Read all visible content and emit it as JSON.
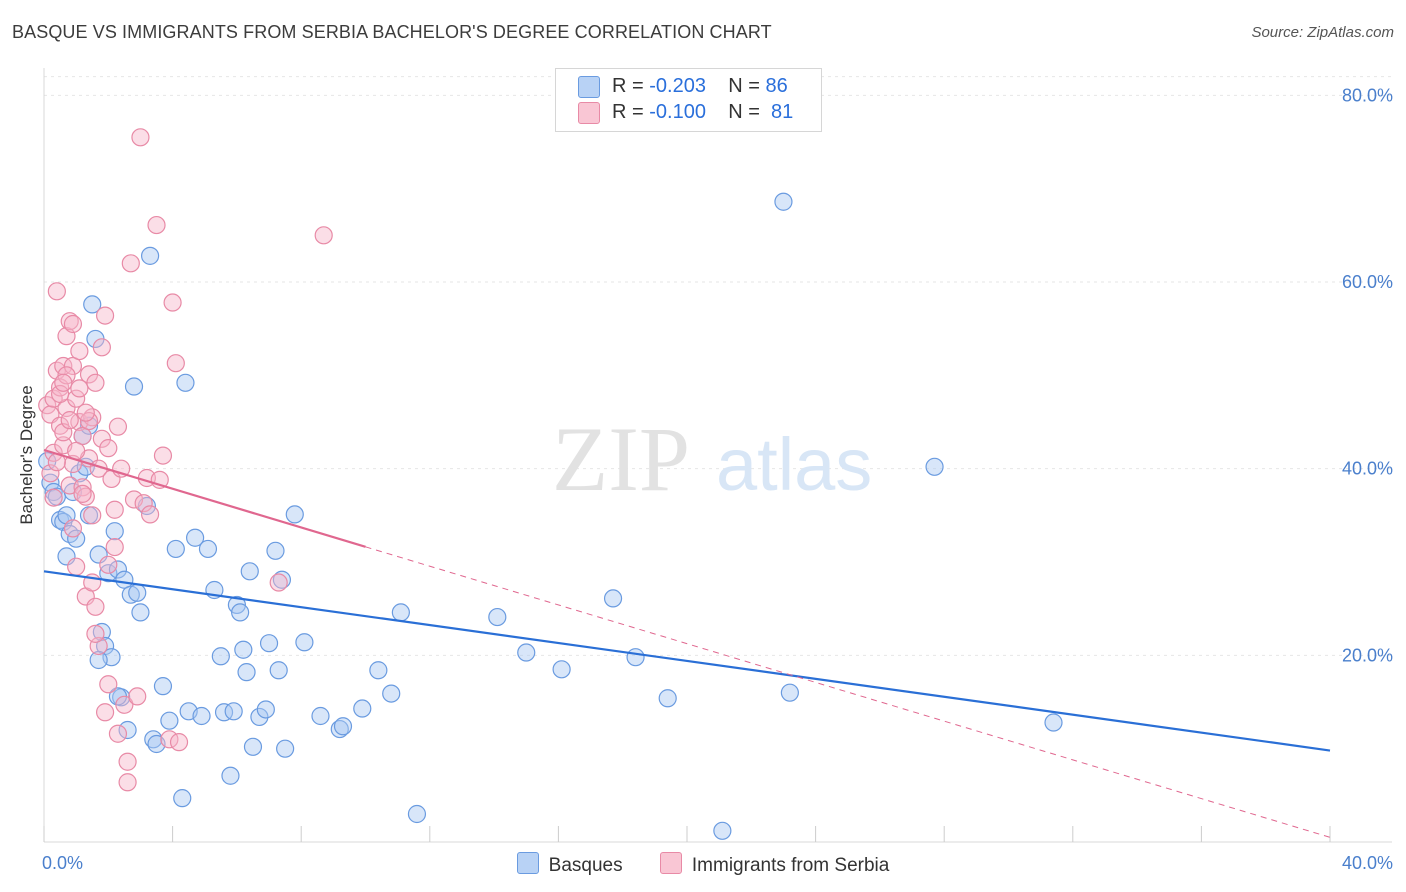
{
  "title": "BASQUE VS IMMIGRANTS FROM SERBIA BACHELOR'S DEGREE CORRELATION CHART",
  "source": "Source: ZipAtlas.com",
  "watermark": {
    "zip": "ZIP",
    "atlas": "atlas"
  },
  "legend": {
    "rows": [
      {
        "r_label": "R =",
        "r_value": "-0.203",
        "n_label": "N =",
        "n_value": "86",
        "color": "#b8d2f5",
        "border": "#6a9be0"
      },
      {
        "r_label": "R =",
        "r_value": "-0.100",
        "n_label": "N =",
        "n_value": "81",
        "color": "#f9c6d4",
        "border": "#e88aa6"
      }
    ]
  },
  "bottom_legend": {
    "basques": "Basques",
    "serbia": "Immigrants from Serbia"
  },
  "chart_data": {
    "type": "scatter",
    "xlabel": "",
    "ylabel": "Bachelor's Degree",
    "xlim": [
      0,
      40
    ],
    "ylim": [
      0,
      84
    ],
    "x_tick_labels": [
      "0.0%",
      "40.0%"
    ],
    "y_ticks": [
      20,
      40,
      60,
      80
    ],
    "y_tick_labels": [
      "20.0%",
      "40.0%",
      "60.0%",
      "80.0%"
    ],
    "series": [
      {
        "name": "Basques",
        "color": "#6a9be0",
        "fill": "rgba(168,200,242,0.45)",
        "trend": {
          "x0": 0,
          "y0": 29.0,
          "x1": 40,
          "y1": 9.8,
          "dashed_from": null,
          "color": "#2a6fd6"
        },
        "points": [
          [
            0.1,
            40.8
          ],
          [
            0.2,
            38.5
          ],
          [
            0.3,
            37.5
          ],
          [
            0.4,
            37.0
          ],
          [
            0.5,
            34.5
          ],
          [
            0.6,
            34.3
          ],
          [
            0.7,
            35.0
          ],
          [
            0.7,
            30.6
          ],
          [
            0.8,
            33.0
          ],
          [
            0.9,
            37.5
          ],
          [
            1.0,
            32.5
          ],
          [
            1.1,
            39.5
          ],
          [
            1.2,
            43.5
          ],
          [
            1.3,
            40.2
          ],
          [
            1.4,
            35.0
          ],
          [
            1.4,
            44.6
          ],
          [
            1.5,
            57.6
          ],
          [
            1.6,
            53.9
          ],
          [
            1.7,
            30.8
          ],
          [
            1.8,
            22.5
          ],
          [
            1.9,
            21.0
          ],
          [
            2.0,
            28.8
          ],
          [
            2.1,
            19.8
          ],
          [
            2.2,
            33.3
          ],
          [
            2.3,
            29.2
          ],
          [
            2.4,
            15.5
          ],
          [
            2.5,
            28.1
          ],
          [
            2.6,
            12.0
          ],
          [
            2.7,
            26.5
          ],
          [
            2.8,
            48.8
          ],
          [
            2.9,
            26.7
          ],
          [
            3.0,
            24.6
          ],
          [
            3.2,
            36.0
          ],
          [
            3.4,
            11.0
          ],
          [
            3.5,
            10.5
          ],
          [
            3.7,
            16.7
          ],
          [
            3.9,
            13.0
          ],
          [
            4.1,
            31.4
          ],
          [
            4.3,
            4.7
          ],
          [
            4.4,
            49.2
          ],
          [
            4.5,
            14.0
          ],
          [
            4.7,
            32.6
          ],
          [
            4.9,
            13.5
          ],
          [
            5.1,
            31.4
          ],
          [
            5.3,
            27.0
          ],
          [
            5.5,
            19.9
          ],
          [
            5.6,
            13.9
          ],
          [
            5.8,
            7.1
          ],
          [
            5.9,
            14.0
          ],
          [
            6.0,
            25.4
          ],
          [
            6.1,
            24.6
          ],
          [
            6.2,
            20.6
          ],
          [
            6.3,
            18.2
          ],
          [
            6.4,
            29.0
          ],
          [
            6.5,
            10.2
          ],
          [
            6.7,
            13.4
          ],
          [
            6.9,
            14.2
          ],
          [
            7.0,
            21.3
          ],
          [
            7.2,
            31.2
          ],
          [
            7.3,
            18.4
          ],
          [
            7.4,
            28.1
          ],
          [
            7.5,
            10.0
          ],
          [
            7.8,
            35.1
          ],
          [
            8.1,
            21.4
          ],
          [
            8.6,
            13.5
          ],
          [
            9.2,
            12.1
          ],
          [
            9.3,
            12.4
          ],
          [
            9.9,
            14.3
          ],
          [
            10.4,
            18.4
          ],
          [
            10.8,
            15.9
          ],
          [
            11.1,
            24.6
          ],
          [
            11.6,
            3.0
          ],
          [
            3.3,
            62.8
          ],
          [
            14.1,
            24.1
          ],
          [
            15.0,
            20.3
          ],
          [
            16.1,
            18.5
          ],
          [
            17.7,
            26.1
          ],
          [
            18.4,
            19.8
          ],
          [
            19.4,
            15.4
          ],
          [
            21.1,
            1.2
          ],
          [
            23.0,
            68.6
          ],
          [
            23.2,
            16.0
          ],
          [
            27.7,
            40.2
          ],
          [
            31.4,
            12.8
          ],
          [
            2.3,
            15.6
          ],
          [
            1.7,
            19.5
          ]
        ]
      },
      {
        "name": "Immigrants from Serbia",
        "color": "#e88aa6",
        "fill": "rgba(246,182,201,0.45)",
        "trend": {
          "x0": 0,
          "y0": 42.0,
          "x1": 40,
          "y1": 0.5,
          "dashed_from": 10.0,
          "color": "#e0678f"
        },
        "points": [
          [
            0.1,
            46.8
          ],
          [
            0.2,
            45.8
          ],
          [
            0.2,
            39.5
          ],
          [
            0.3,
            41.7
          ],
          [
            0.3,
            47.5
          ],
          [
            0.4,
            50.5
          ],
          [
            0.4,
            59.0
          ],
          [
            0.5,
            44.6
          ],
          [
            0.5,
            48.7
          ],
          [
            0.6,
            51.0
          ],
          [
            0.6,
            42.5
          ],
          [
            0.7,
            46.5
          ],
          [
            0.7,
            54.2
          ],
          [
            0.8,
            55.8
          ],
          [
            0.8,
            38.2
          ],
          [
            0.9,
            40.5
          ],
          [
            0.9,
            51.0
          ],
          [
            1.0,
            29.5
          ],
          [
            1.0,
            47.5
          ],
          [
            1.1,
            52.6
          ],
          [
            1.1,
            45.0
          ],
          [
            1.2,
            43.5
          ],
          [
            1.2,
            38.0
          ],
          [
            1.3,
            37.0
          ],
          [
            1.3,
            26.3
          ],
          [
            1.4,
            50.1
          ],
          [
            1.4,
            41.1
          ],
          [
            1.5,
            35.0
          ],
          [
            1.5,
            45.5
          ],
          [
            1.6,
            49.2
          ],
          [
            1.6,
            25.2
          ],
          [
            1.7,
            40.0
          ],
          [
            1.7,
            21.0
          ],
          [
            1.8,
            43.2
          ],
          [
            1.9,
            56.4
          ],
          [
            1.9,
            13.9
          ],
          [
            2.0,
            16.9
          ],
          [
            2.0,
            42.2
          ],
          [
            2.1,
            38.9
          ],
          [
            2.2,
            35.6
          ],
          [
            2.3,
            44.5
          ],
          [
            2.3,
            11.6
          ],
          [
            2.4,
            40.0
          ],
          [
            2.5,
            14.7
          ],
          [
            2.6,
            8.6
          ],
          [
            2.6,
            6.4
          ],
          [
            2.7,
            62.0
          ],
          [
            2.8,
            36.7
          ],
          [
            2.9,
            15.6
          ],
          [
            3.0,
            75.5
          ],
          [
            3.1,
            36.3
          ],
          [
            3.2,
            39.0
          ],
          [
            3.3,
            35.1
          ],
          [
            3.5,
            66.1
          ],
          [
            3.6,
            38.8
          ],
          [
            3.7,
            41.4
          ],
          [
            3.9,
            11.0
          ],
          [
            4.0,
            57.8
          ],
          [
            4.1,
            51.3
          ],
          [
            4.2,
            10.7
          ],
          [
            8.7,
            65.0
          ],
          [
            7.3,
            27.8
          ],
          [
            0.5,
            48.0
          ],
          [
            0.6,
            43.9
          ],
          [
            1.0,
            41.9
          ],
          [
            1.2,
            37.3
          ],
          [
            1.5,
            27.8
          ],
          [
            1.8,
            53.0
          ],
          [
            0.9,
            33.6
          ],
          [
            0.4,
            40.7
          ],
          [
            1.1,
            48.6
          ],
          [
            0.8,
            45.2
          ],
          [
            0.3,
            36.9
          ],
          [
            2.0,
            29.7
          ],
          [
            1.4,
            45.1
          ],
          [
            0.7,
            50.0
          ],
          [
            1.6,
            22.3
          ],
          [
            2.2,
            31.6
          ],
          [
            0.9,
            55.5
          ],
          [
            1.3,
            46.0
          ],
          [
            0.6,
            49.2
          ]
        ]
      }
    ]
  }
}
